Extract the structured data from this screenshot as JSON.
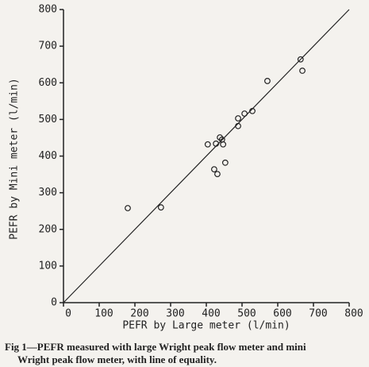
{
  "chart_data": {
    "type": "scatter",
    "x_label": "PEFR by Large meter (l/min)",
    "y_label": "PEFR by Mini meter (l/min)",
    "caption": [
      "Fig 1—PEFR measured with large Wright peak flow meter and mini",
      "Wright peak flow meter, with line of equality."
    ],
    "x": [
      180,
      273,
      404,
      427,
      438,
      444,
      447,
      453,
      422,
      431,
      489,
      489,
      507,
      529,
      571,
      664,
      669
    ],
    "y": [
      258,
      260,
      432,
      434,
      451,
      445,
      432,
      382,
      364,
      351,
      503,
      482,
      516,
      523,
      605,
      664,
      633
    ],
    "color": "#222222",
    "xlim": [
      0,
      800
    ],
    "ylim": [
      0,
      800
    ],
    "xticks": [
      0,
      100,
      200,
      300,
      400,
      500,
      600,
      700,
      800
    ],
    "yticks": [
      0,
      100,
      200,
      300,
      400,
      500,
      600,
      700,
      800
    ],
    "line_of_equality": true,
    "grid": false
  }
}
